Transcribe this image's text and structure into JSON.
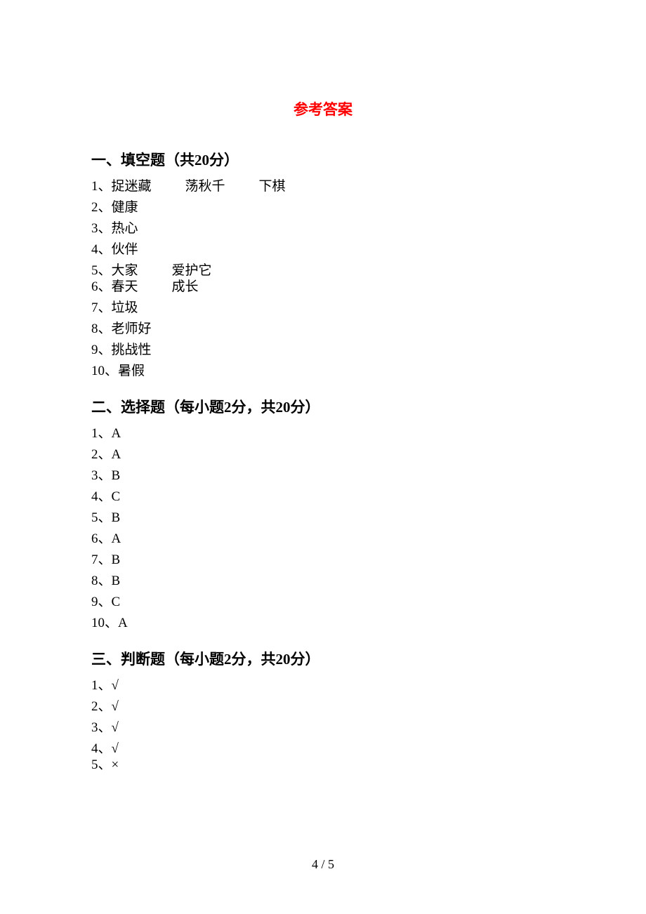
{
  "title": "参考答案",
  "sections": [
    {
      "heading": "一、填空题（共20分）",
      "items": [
        {
          "num": "1、",
          "parts": [
            "捉迷藏",
            "荡秋千",
            "下棋"
          ],
          "tight": false
        },
        {
          "num": "2、",
          "parts": [
            "健康"
          ],
          "tight": false
        },
        {
          "num": "3、",
          "parts": [
            "热心"
          ],
          "tight": false
        },
        {
          "num": "4、",
          "parts": [
            "伙伴"
          ],
          "tight": false
        },
        {
          "num": "5、",
          "parts": [
            "大家",
            "爱护它"
          ],
          "tight": true
        },
        {
          "num": "6、",
          "parts": [
            "春天",
            "成长"
          ],
          "tight": false
        },
        {
          "num": "7、",
          "parts": [
            "垃圾"
          ],
          "tight": false
        },
        {
          "num": "8、",
          "parts": [
            "老师好"
          ],
          "tight": false
        },
        {
          "num": "9、",
          "parts": [
            "挑战性"
          ],
          "tight": false
        },
        {
          "num": "10、",
          "parts": [
            "暑假"
          ],
          "tight": false
        }
      ]
    },
    {
      "heading": "二、选择题（每小题2分，共20分）",
      "items": [
        {
          "num": "1、",
          "parts": [
            "A"
          ],
          "tight": false
        },
        {
          "num": "2、",
          "parts": [
            "A"
          ],
          "tight": false
        },
        {
          "num": "3、",
          "parts": [
            "B"
          ],
          "tight": false
        },
        {
          "num": "4、",
          "parts": [
            "C"
          ],
          "tight": false
        },
        {
          "num": "5、",
          "parts": [
            "B"
          ],
          "tight": false
        },
        {
          "num": "6、",
          "parts": [
            "A"
          ],
          "tight": false
        },
        {
          "num": "7、",
          "parts": [
            "B"
          ],
          "tight": false
        },
        {
          "num": "8、",
          "parts": [
            "B"
          ],
          "tight": false
        },
        {
          "num": "9、",
          "parts": [
            "C"
          ],
          "tight": false
        },
        {
          "num": "10、",
          "parts": [
            "A"
          ],
          "tight": false
        }
      ]
    },
    {
      "heading": "三、判断题（每小题2分，共20分）",
      "items": [
        {
          "num": "1、",
          "parts": [
            "√"
          ],
          "tight": false
        },
        {
          "num": "2、",
          "parts": [
            "√"
          ],
          "tight": false
        },
        {
          "num": "3、",
          "parts": [
            "√"
          ],
          "tight": false
        },
        {
          "num": "4、",
          "parts": [
            "√"
          ],
          "tight": true
        },
        {
          "num": "5、",
          "parts": [
            "×"
          ],
          "tight": false
        }
      ]
    }
  ],
  "pageNumber": "4 / 5",
  "colors": {
    "title": "#ff0000",
    "text": "#000000",
    "background": "#ffffff"
  }
}
